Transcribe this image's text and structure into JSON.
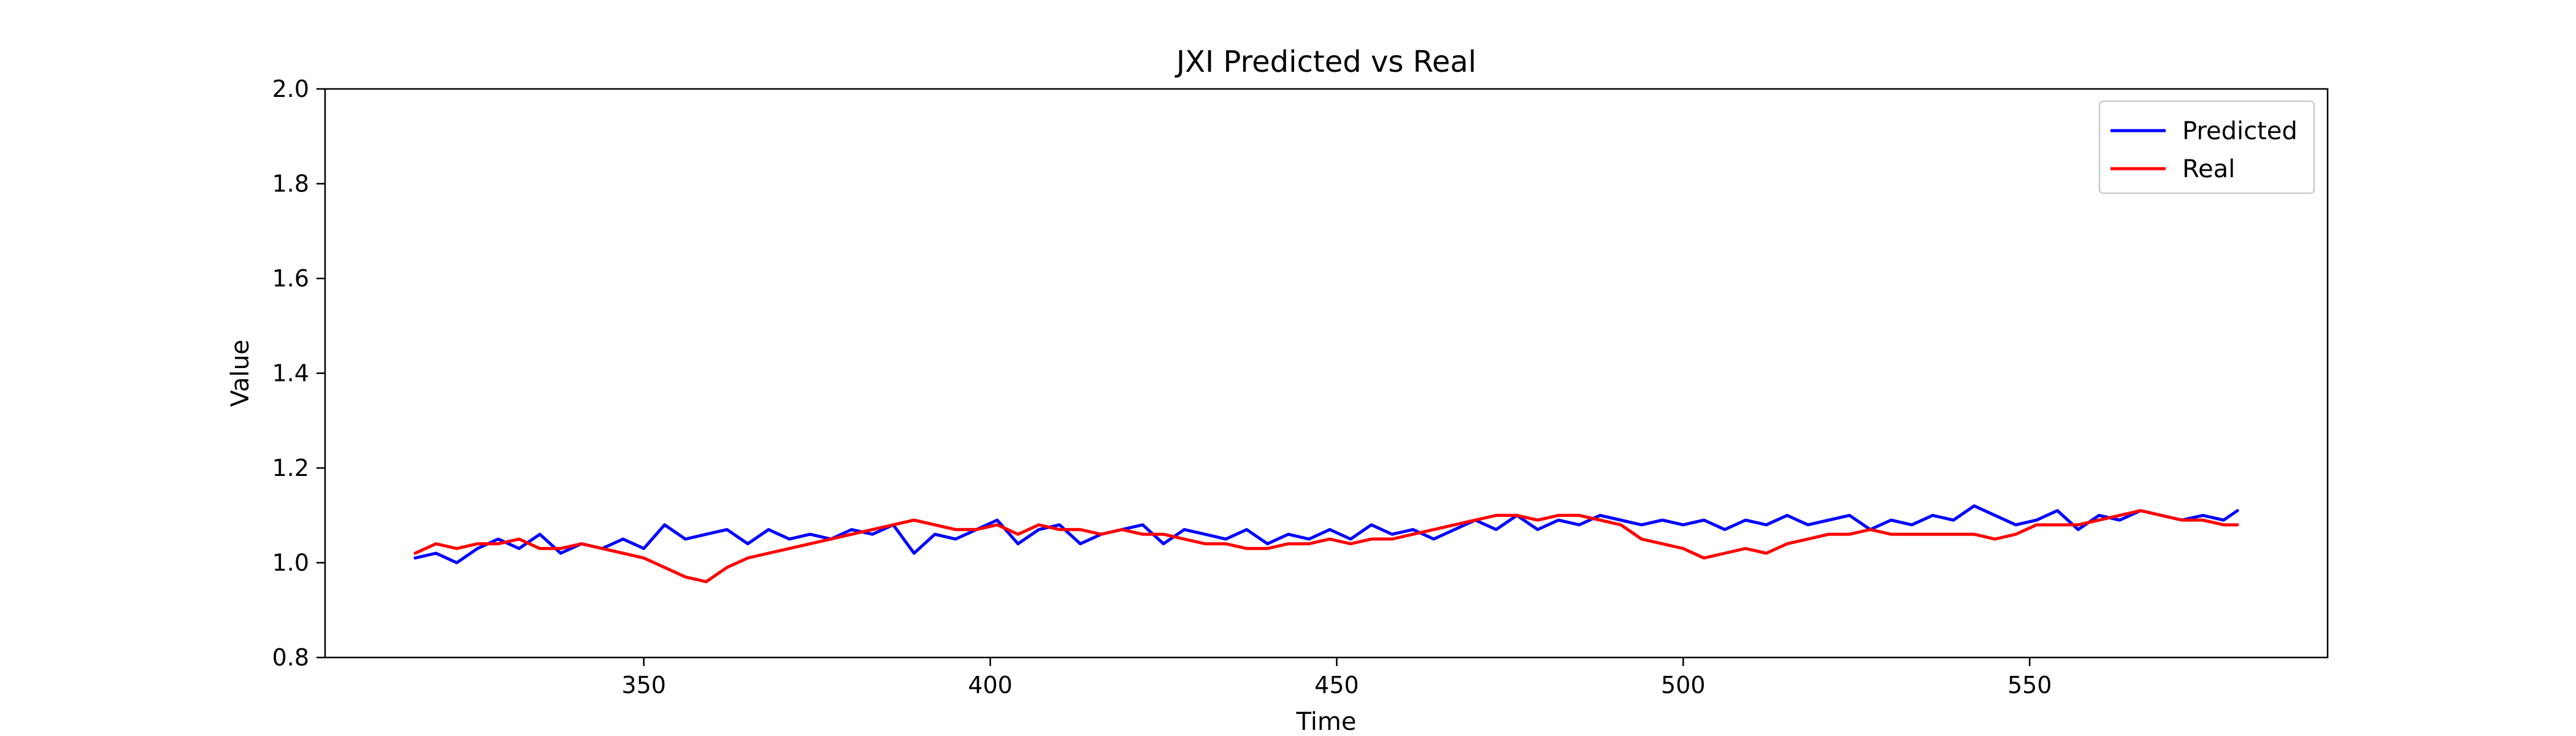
{
  "chart_data": {
    "type": "line",
    "title": "JXI Predicted vs Real",
    "xlabel": "Time",
    "ylabel": "Value",
    "xlim": [
      304,
      593
    ],
    "ylim": [
      0.8,
      2.0
    ],
    "xticks": [
      350,
      400,
      450,
      500,
      550
    ],
    "yticks": [
      0.8,
      1.0,
      1.2,
      1.4,
      1.6,
      1.8,
      2.0
    ],
    "legend_position": "top-right",
    "grid": false,
    "series": [
      {
        "name": "Predicted",
        "color": "#0000ff",
        "x": [
          317,
          320,
          323,
          326,
          329,
          332,
          335,
          338,
          341,
          344,
          347,
          350,
          353,
          356,
          359,
          362,
          365,
          368,
          371,
          374,
          377,
          380,
          383,
          386,
          389,
          392,
          395,
          398,
          401,
          404,
          407,
          410,
          413,
          416,
          419,
          422,
          425,
          428,
          431,
          434,
          437,
          440,
          443,
          446,
          449,
          452,
          455,
          458,
          461,
          464,
          467,
          470,
          473,
          476,
          479,
          482,
          485,
          488,
          491,
          494,
          497,
          500,
          503,
          506,
          509,
          512,
          515,
          518,
          521,
          524,
          527,
          530,
          533,
          536,
          539,
          542,
          545,
          548,
          551,
          554,
          557,
          560,
          563,
          566,
          569,
          572,
          575,
          578,
          580
        ],
        "values": [
          1.01,
          1.02,
          1.0,
          1.03,
          1.05,
          1.03,
          1.06,
          1.02,
          1.04,
          1.03,
          1.05,
          1.03,
          1.08,
          1.05,
          1.06,
          1.07,
          1.04,
          1.07,
          1.05,
          1.06,
          1.05,
          1.07,
          1.06,
          1.08,
          1.02,
          1.06,
          1.05,
          1.07,
          1.09,
          1.04,
          1.07,
          1.08,
          1.04,
          1.06,
          1.07,
          1.08,
          1.04,
          1.07,
          1.06,
          1.05,
          1.07,
          1.04,
          1.06,
          1.05,
          1.07,
          1.05,
          1.08,
          1.06,
          1.07,
          1.05,
          1.07,
          1.09,
          1.07,
          1.1,
          1.07,
          1.09,
          1.08,
          1.1,
          1.09,
          1.08,
          1.09,
          1.08,
          1.09,
          1.07,
          1.09,
          1.08,
          1.1,
          1.08,
          1.09,
          1.1,
          1.07,
          1.09,
          1.08,
          1.1,
          1.09,
          1.12,
          1.1,
          1.08,
          1.09,
          1.11,
          1.07,
          1.1,
          1.09,
          1.11,
          1.1,
          1.09,
          1.1,
          1.09,
          1.11
        ]
      },
      {
        "name": "Real",
        "color": "#ff0000",
        "x": [
          317,
          320,
          323,
          326,
          329,
          332,
          335,
          338,
          341,
          344,
          347,
          350,
          353,
          356,
          359,
          362,
          365,
          368,
          371,
          374,
          377,
          380,
          383,
          386,
          389,
          392,
          395,
          398,
          401,
          404,
          407,
          410,
          413,
          416,
          419,
          422,
          425,
          428,
          431,
          434,
          437,
          440,
          443,
          446,
          449,
          452,
          455,
          458,
          461,
          464,
          467,
          470,
          473,
          476,
          479,
          482,
          485,
          488,
          491,
          494,
          497,
          500,
          503,
          506,
          509,
          512,
          515,
          518,
          521,
          524,
          527,
          530,
          533,
          536,
          539,
          542,
          545,
          548,
          551,
          554,
          557,
          560,
          563,
          566,
          569,
          572,
          575,
          578,
          580
        ],
        "values": [
          1.02,
          1.04,
          1.03,
          1.04,
          1.04,
          1.05,
          1.03,
          1.03,
          1.04,
          1.03,
          1.02,
          1.01,
          0.99,
          0.97,
          0.96,
          0.99,
          1.01,
          1.02,
          1.03,
          1.04,
          1.05,
          1.06,
          1.07,
          1.08,
          1.09,
          1.08,
          1.07,
          1.07,
          1.08,
          1.06,
          1.08,
          1.07,
          1.07,
          1.06,
          1.07,
          1.06,
          1.06,
          1.05,
          1.04,
          1.04,
          1.03,
          1.03,
          1.04,
          1.04,
          1.05,
          1.04,
          1.05,
          1.05,
          1.06,
          1.07,
          1.08,
          1.09,
          1.1,
          1.1,
          1.09,
          1.1,
          1.1,
          1.09,
          1.08,
          1.05,
          1.04,
          1.03,
          1.01,
          1.02,
          1.03,
          1.02,
          1.04,
          1.05,
          1.06,
          1.06,
          1.07,
          1.06,
          1.06,
          1.06,
          1.06,
          1.06,
          1.05,
          1.06,
          1.08,
          1.08,
          1.08,
          1.09,
          1.1,
          1.11,
          1.1,
          1.09,
          1.09,
          1.08,
          1.08
        ]
      }
    ]
  }
}
